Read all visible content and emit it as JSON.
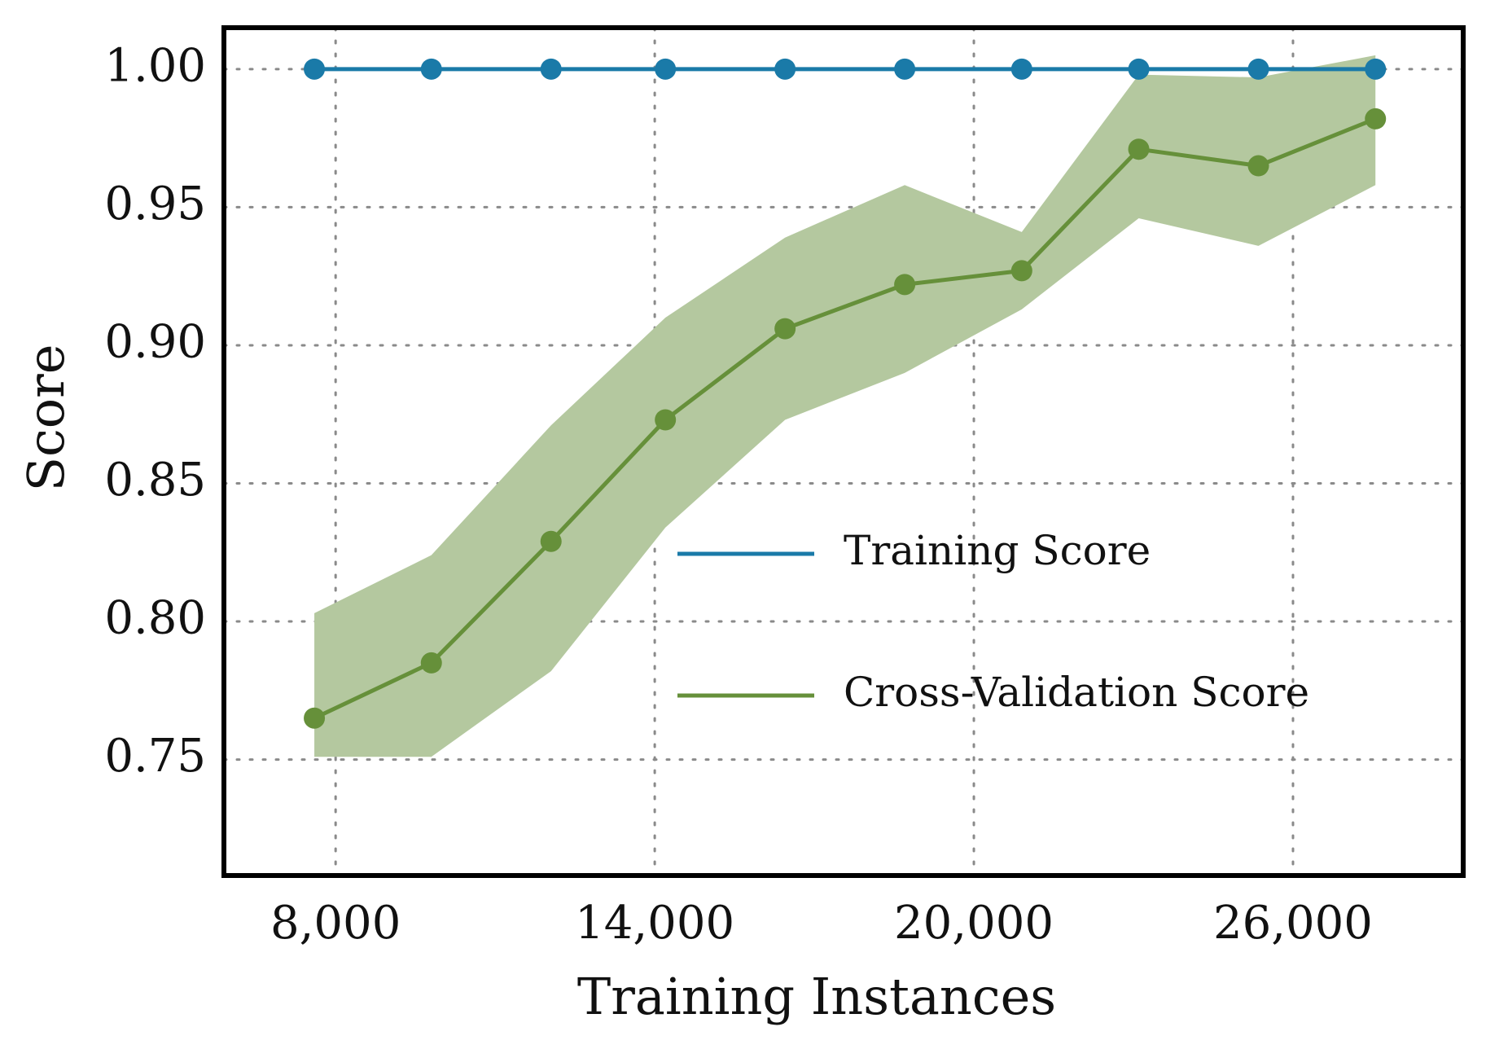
{
  "chart_data": {
    "type": "line",
    "title": "",
    "xlabel": "Training Instances",
    "ylabel": "Score",
    "xlim": [
      5900,
      29200
    ],
    "ylim": [
      0.708,
      1.015
    ],
    "xticks": [
      8000,
      14000,
      20000,
      26000
    ],
    "xtick_labels": [
      "8,000",
      "14,000",
      "20,000",
      "26,000"
    ],
    "yticks": [
      0.75,
      0.8,
      0.85,
      0.9,
      0.95,
      1.0
    ],
    "ytick_labels": [
      "0.75",
      "0.80",
      "0.85",
      "0.90",
      "0.95",
      "1.00"
    ],
    "grid": true,
    "legend_position": "center-right",
    "x": [
      7600,
      9800,
      12050,
      14200,
      16450,
      18700,
      20900,
      23100,
      25350,
      27550
    ],
    "series": [
      {
        "name": "Training Score",
        "color": "#1a7aa8",
        "values": [
          1.0,
          1.0,
          1.0,
          1.0,
          1.0,
          1.0,
          1.0,
          1.0,
          1.0,
          1.0
        ],
        "lower": [
          1.0,
          1.0,
          1.0,
          1.0,
          1.0,
          1.0,
          1.0,
          1.0,
          1.0,
          1.0
        ],
        "upper": [
          1.0,
          1.0,
          1.0,
          1.0,
          1.0,
          1.0,
          1.0,
          1.0,
          1.0,
          1.0
        ]
      },
      {
        "name": "Cross-Validation Score",
        "color": "#66903a",
        "band_color": "#b4c89f",
        "values": [
          0.765,
          0.785,
          0.829,
          0.873,
          0.906,
          0.922,
          0.927,
          0.971,
          0.965,
          0.982
        ],
        "lower": [
          0.751,
          0.751,
          0.782,
          0.834,
          0.873,
          0.89,
          0.913,
          0.946,
          0.936,
          0.958
        ],
        "upper": [
          0.803,
          0.824,
          0.871,
          0.91,
          0.939,
          0.958,
          0.941,
          0.998,
          0.997,
          1.005
        ]
      }
    ]
  }
}
